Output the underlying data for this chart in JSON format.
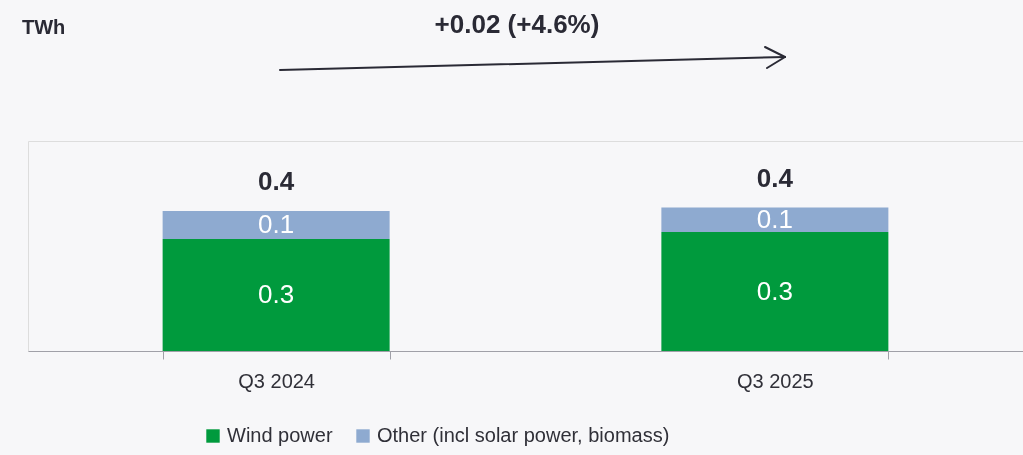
{
  "chart_data": {
    "type": "bar",
    "stacked": true,
    "annotations": [
      "TWh",
      "+0.02 (+4.6%)"
    ],
    "categories": [
      "Q3 2024",
      "Q3 2025"
    ],
    "series": [
      {
        "name": "Wind power",
        "color": "#009a3d",
        "values": [
          0.32,
          0.34
        ],
        "value_labels": [
          "0.3",
          "0.3"
        ]
      },
      {
        "name": "Other (incl solar power, biomass)",
        "color": "#8eaad0",
        "values": [
          0.08,
          0.07
        ],
        "value_labels": [
          "0.1",
          "0.1"
        ]
      }
    ],
    "totals": [
      "0.4",
      "0.4"
    ],
    "ylim": [
      0,
      0.6
    ],
    "tick_labels": "x",
    "grid": false,
    "legend": "bottom"
  }
}
